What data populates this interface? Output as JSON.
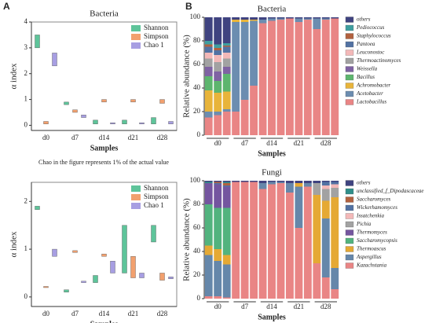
{
  "panels": [
    "A",
    "B"
  ],
  "note": "Chao in the figure represents 1% of the actual value",
  "chart_data": [
    {
      "type": "box",
      "title": "Bacteria",
      "x_label": "Samples",
      "y_label": "α index",
      "categories": [
        "d0",
        "d7",
        "d14",
        "d21",
        "d28"
      ],
      "ylim": [
        -0.2,
        4
      ],
      "yticks": [
        0,
        1,
        2,
        3,
        4
      ],
      "series": [
        {
          "name": "Shannon",
          "color": "#5ec49a",
          "values": [
            [
              3.0,
              3.5
            ],
            [
              0.8,
              0.9
            ],
            [
              0.05,
              0.2
            ],
            [
              0.05,
              0.2
            ],
            [
              0.05,
              0.3
            ]
          ]
        },
        {
          "name": "Simpson",
          "color": "#f2a06e",
          "values": [
            [
              0.05,
              0.15
            ],
            [
              0.5,
              0.6
            ],
            [
              0.9,
              1.0
            ],
            [
              0.9,
              1.0
            ],
            [
              0.85,
              1.0
            ]
          ]
        },
        {
          "name": "Chao 1",
          "color": "#a79ee2",
          "values": [
            [
              2.3,
              2.8
            ],
            [
              0.3,
              0.4
            ],
            [
              0.05,
              0.1
            ],
            [
              0.05,
              0.1
            ],
            [
              0.05,
              0.15
            ]
          ]
        }
      ]
    },
    {
      "type": "box",
      "title": "",
      "x_label": "Samples",
      "y_label": "α index",
      "categories": [
        "d0",
        "d7",
        "d14",
        "d21",
        "d28"
      ],
      "ylim": [
        -0.2,
        2.4
      ],
      "yticks": [
        0,
        1,
        2
      ],
      "series": [
        {
          "name": "Shannon",
          "color": "#5ec49a",
          "values": [
            [
              1.83,
              1.9
            ],
            [
              0.1,
              0.15
            ],
            [
              0.3,
              0.45
            ],
            [
              0.5,
              1.5
            ],
            [
              1.15,
              1.5
            ]
          ]
        },
        {
          "name": "Simpson",
          "color": "#f2a06e",
          "values": [
            [
              0.2,
              0.22
            ],
            [
              0.93,
              0.97
            ],
            [
              0.85,
              0.9
            ],
            [
              0.4,
              0.85
            ],
            [
              0.35,
              0.5
            ]
          ]
        },
        {
          "name": "Chao 1",
          "color": "#a79ee2",
          "values": [
            [
              0.85,
              1.0
            ],
            [
              0.3,
              0.33
            ],
            [
              0.5,
              0.75
            ],
            [
              0.4,
              0.5
            ],
            [
              0.38,
              0.42
            ]
          ]
        }
      ]
    },
    {
      "type": "stacked",
      "title": "Bacteria",
      "x_label": "Samples",
      "y_label": "Relative abundance (%)",
      "categories": [
        "d0",
        "d7",
        "d14",
        "d21",
        "d28"
      ],
      "ylim": [
        0,
        100
      ],
      "yticks": [
        0,
        20,
        40,
        60,
        80,
        100
      ],
      "series": [
        {
          "name": "Lactobacillus",
          "color": "#e98585",
          "values": [
            [
              15,
              17,
              20
            ],
            [
              20,
              30,
              42
            ],
            [
              95,
              97,
              98
            ],
            [
              99,
              96,
              98
            ],
            [
              90,
              98,
              99
            ]
          ]
        },
        {
          "name": "Acetobacter",
          "color": "#6c8db0",
          "values": [
            [
              5,
              3,
              2
            ],
            [
              76,
              66,
              55
            ],
            [
              3,
              2,
              1
            ],
            [
              0,
              3,
              1
            ],
            [
              9,
              1,
              0
            ]
          ]
        },
        {
          "name": "Achromobacter",
          "color": "#e8b43a",
          "values": [
            [
              18,
              16,
              15
            ],
            [
              2,
              2,
              1
            ],
            [
              0,
              0,
              0
            ],
            [
              0,
              0,
              0
            ],
            [
              0,
              0,
              0
            ]
          ]
        },
        {
          "name": "Bacillus",
          "color": "#5db56e",
          "values": [
            [
              12,
              10,
              15
            ],
            [
              0,
              0,
              0
            ],
            [
              0,
              0,
              0
            ],
            [
              0,
              0,
              0
            ],
            [
              0,
              0,
              0
            ]
          ]
        },
        {
          "name": "Weissella",
          "color": "#7f62a3",
          "values": [
            [
              8,
              8,
              6
            ],
            [
              0,
              0,
              0
            ],
            [
              0,
              0,
              0
            ],
            [
              0,
              0,
              0
            ],
            [
              0,
              0,
              0
            ]
          ]
        },
        {
          "name": "Thermoactinomyces",
          "color": "#a2a2a2",
          "values": [
            [
              7,
              8,
              7
            ],
            [
              0,
              0,
              0
            ],
            [
              0,
              0,
              0
            ],
            [
              0,
              0,
              0
            ],
            [
              0,
              0,
              0
            ]
          ]
        },
        {
          "name": "Leuconostoc",
          "color": "#f3b8b8",
          "values": [
            [
              5,
              6,
              5
            ],
            [
              0,
              0,
              0
            ],
            [
              0,
              0,
              0
            ],
            [
              0,
              0,
              0
            ],
            [
              0,
              0,
              0
            ]
          ]
        },
        {
          "name": "Pantoea",
          "color": "#5272a3",
          "values": [
            [
              5,
              4,
              5
            ],
            [
              0,
              0,
              0
            ],
            [
              0,
              0,
              0
            ],
            [
              0,
              0,
              0
            ],
            [
              0,
              0,
              0
            ]
          ]
        },
        {
          "name": "Staphylococcus",
          "color": "#b2613f",
          "values": [
            [
              2,
              2,
              1
            ],
            [
              0,
              0,
              0
            ],
            [
              0,
              0,
              0
            ],
            [
              0,
              0,
              0
            ],
            [
              0,
              0,
              0
            ]
          ]
        },
        {
          "name": "Pediococcus",
          "color": "#3e9fa0",
          "values": [
            [
              3,
              3,
              2
            ],
            [
              0,
              0,
              0
            ],
            [
              0,
              0,
              0
            ],
            [
              0,
              0,
              0
            ],
            [
              0,
              0,
              0
            ]
          ]
        },
        {
          "name": "others",
          "color": "#3f4380",
          "values": [
            [
              20,
              23,
              22
            ],
            [
              2,
              2,
              2
            ],
            [
              2,
              1,
              1
            ],
            [
              1,
              1,
              1
            ],
            [
              1,
              1,
              1
            ]
          ]
        }
      ]
    },
    {
      "type": "stacked",
      "title": "Fungi",
      "x_label": "Samples",
      "y_label": "Relative abundance (%)",
      "categories": [
        "d0",
        "d7",
        "d14",
        "d21",
        "d28"
      ],
      "ylim": [
        0,
        100
      ],
      "yticks": [
        0,
        20,
        40,
        60,
        80,
        100
      ],
      "series": [
        {
          "name": "Kazachstania",
          "color": "#e98585",
          "values": [
            [
              2,
              2,
              1
            ],
            [
              99,
              99,
              99
            ],
            [
              93,
              97,
              98
            ],
            [
              90,
              60,
              95
            ],
            [
              30,
              18,
              8
            ]
          ]
        },
        {
          "name": "Aspergillus",
          "color": "#6587aa",
          "values": [
            [
              35,
              30,
              28
            ],
            [
              0,
              0,
              0
            ],
            [
              5,
              2,
              1
            ],
            [
              8,
              35,
              3
            ],
            [
              0,
              50,
              18
            ]
          ]
        },
        {
          "name": "Thermoascus",
          "color": "#e5a934",
          "values": [
            [
              8,
              10,
              8
            ],
            [
              0,
              0,
              0
            ],
            [
              0,
              0,
              0
            ],
            [
              0,
              3,
              0
            ],
            [
              58,
              15,
              60
            ]
          ]
        },
        {
          "name": "Saccharomycopsis",
          "color": "#52b37e",
          "values": [
            [
              35,
              35,
              40
            ],
            [
              0,
              0,
              0
            ],
            [
              0,
              0,
              0
            ],
            [
              0,
              0,
              0
            ],
            [
              0,
              0,
              0
            ]
          ]
        },
        {
          "name": "Thermomyces",
          "color": "#74559f",
          "values": [
            [
              18,
              20,
              18
            ],
            [
              0,
              0,
              0
            ],
            [
              0,
              0,
              0
            ],
            [
              0,
              0,
              0
            ],
            [
              0,
              0,
              0
            ]
          ]
        },
        {
          "name": "Pichia",
          "color": "#a2a2a2",
          "values": [
            [
              0,
              0,
              0
            ],
            [
              0,
              0,
              0
            ],
            [
              0,
              0,
              0
            ],
            [
              0,
              0,
              0
            ],
            [
              10,
              10,
              8
            ]
          ]
        },
        {
          "name": "Issatchenkia",
          "color": "#f3b8b8",
          "values": [
            [
              0,
              0,
              0
            ],
            [
              0,
              0,
              0
            ],
            [
              0,
              0,
              0
            ],
            [
              0,
              0,
              0
            ],
            [
              0,
              3,
              3
            ]
          ]
        },
        {
          "name": "Wickerhamomyces",
          "color": "#5272a3",
          "values": [
            [
              0,
              1,
              1
            ],
            [
              0,
              0,
              0
            ],
            [
              0,
              0,
              0
            ],
            [
              0,
              0,
              0
            ],
            [
              0,
              3,
              2
            ]
          ]
        },
        {
          "name": "Saccharomyces",
          "color": "#b2613f",
          "values": [
            [
              0,
              1,
              2
            ],
            [
              0,
              0,
              0
            ],
            [
              0,
              0,
              0
            ],
            [
              0,
              0,
              0
            ],
            [
              0,
              0,
              0
            ]
          ]
        },
        {
          "name": "unclassified_f_Dipodascaceae",
          "color": "#2f8f8a",
          "values": [
            [
              1,
              0,
              1
            ],
            [
              0,
              0,
              0
            ],
            [
              0,
              0,
              0
            ],
            [
              0,
              0,
              0
            ],
            [
              0,
              0,
              0
            ]
          ]
        },
        {
          "name": "others",
          "color": "#3f4380",
          "values": [
            [
              1,
              1,
              1
            ],
            [
              1,
              1,
              1
            ],
            [
              2,
              1,
              1
            ],
            [
              2,
              2,
              2
            ],
            [
              2,
              1,
              1
            ]
          ]
        }
      ]
    }
  ]
}
